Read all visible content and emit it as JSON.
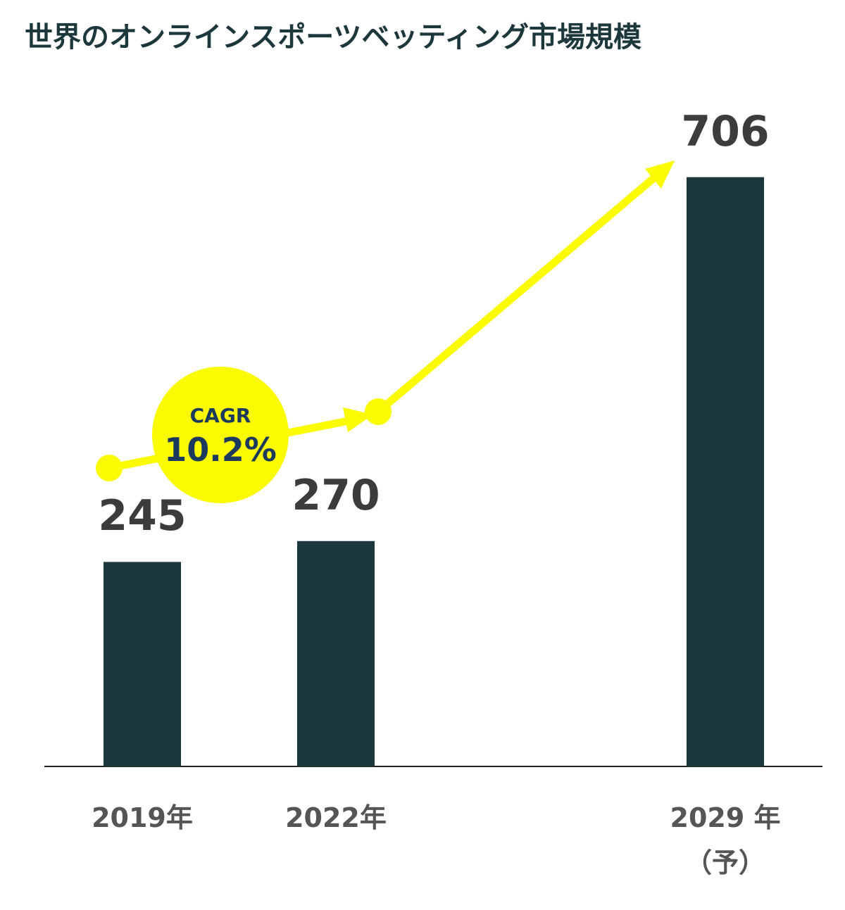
{
  "chart_data": {
    "type": "bar",
    "title": "世界のオンラインスポーツベッティング市場規模",
    "categories": [
      "2019年",
      "2022年",
      "2029 年\n（予）"
    ],
    "values": [
      245,
      270,
      706
    ],
    "color": "#1d383c",
    "annotations": [
      "CAGR",
      "10.2%"
    ]
  }
}
